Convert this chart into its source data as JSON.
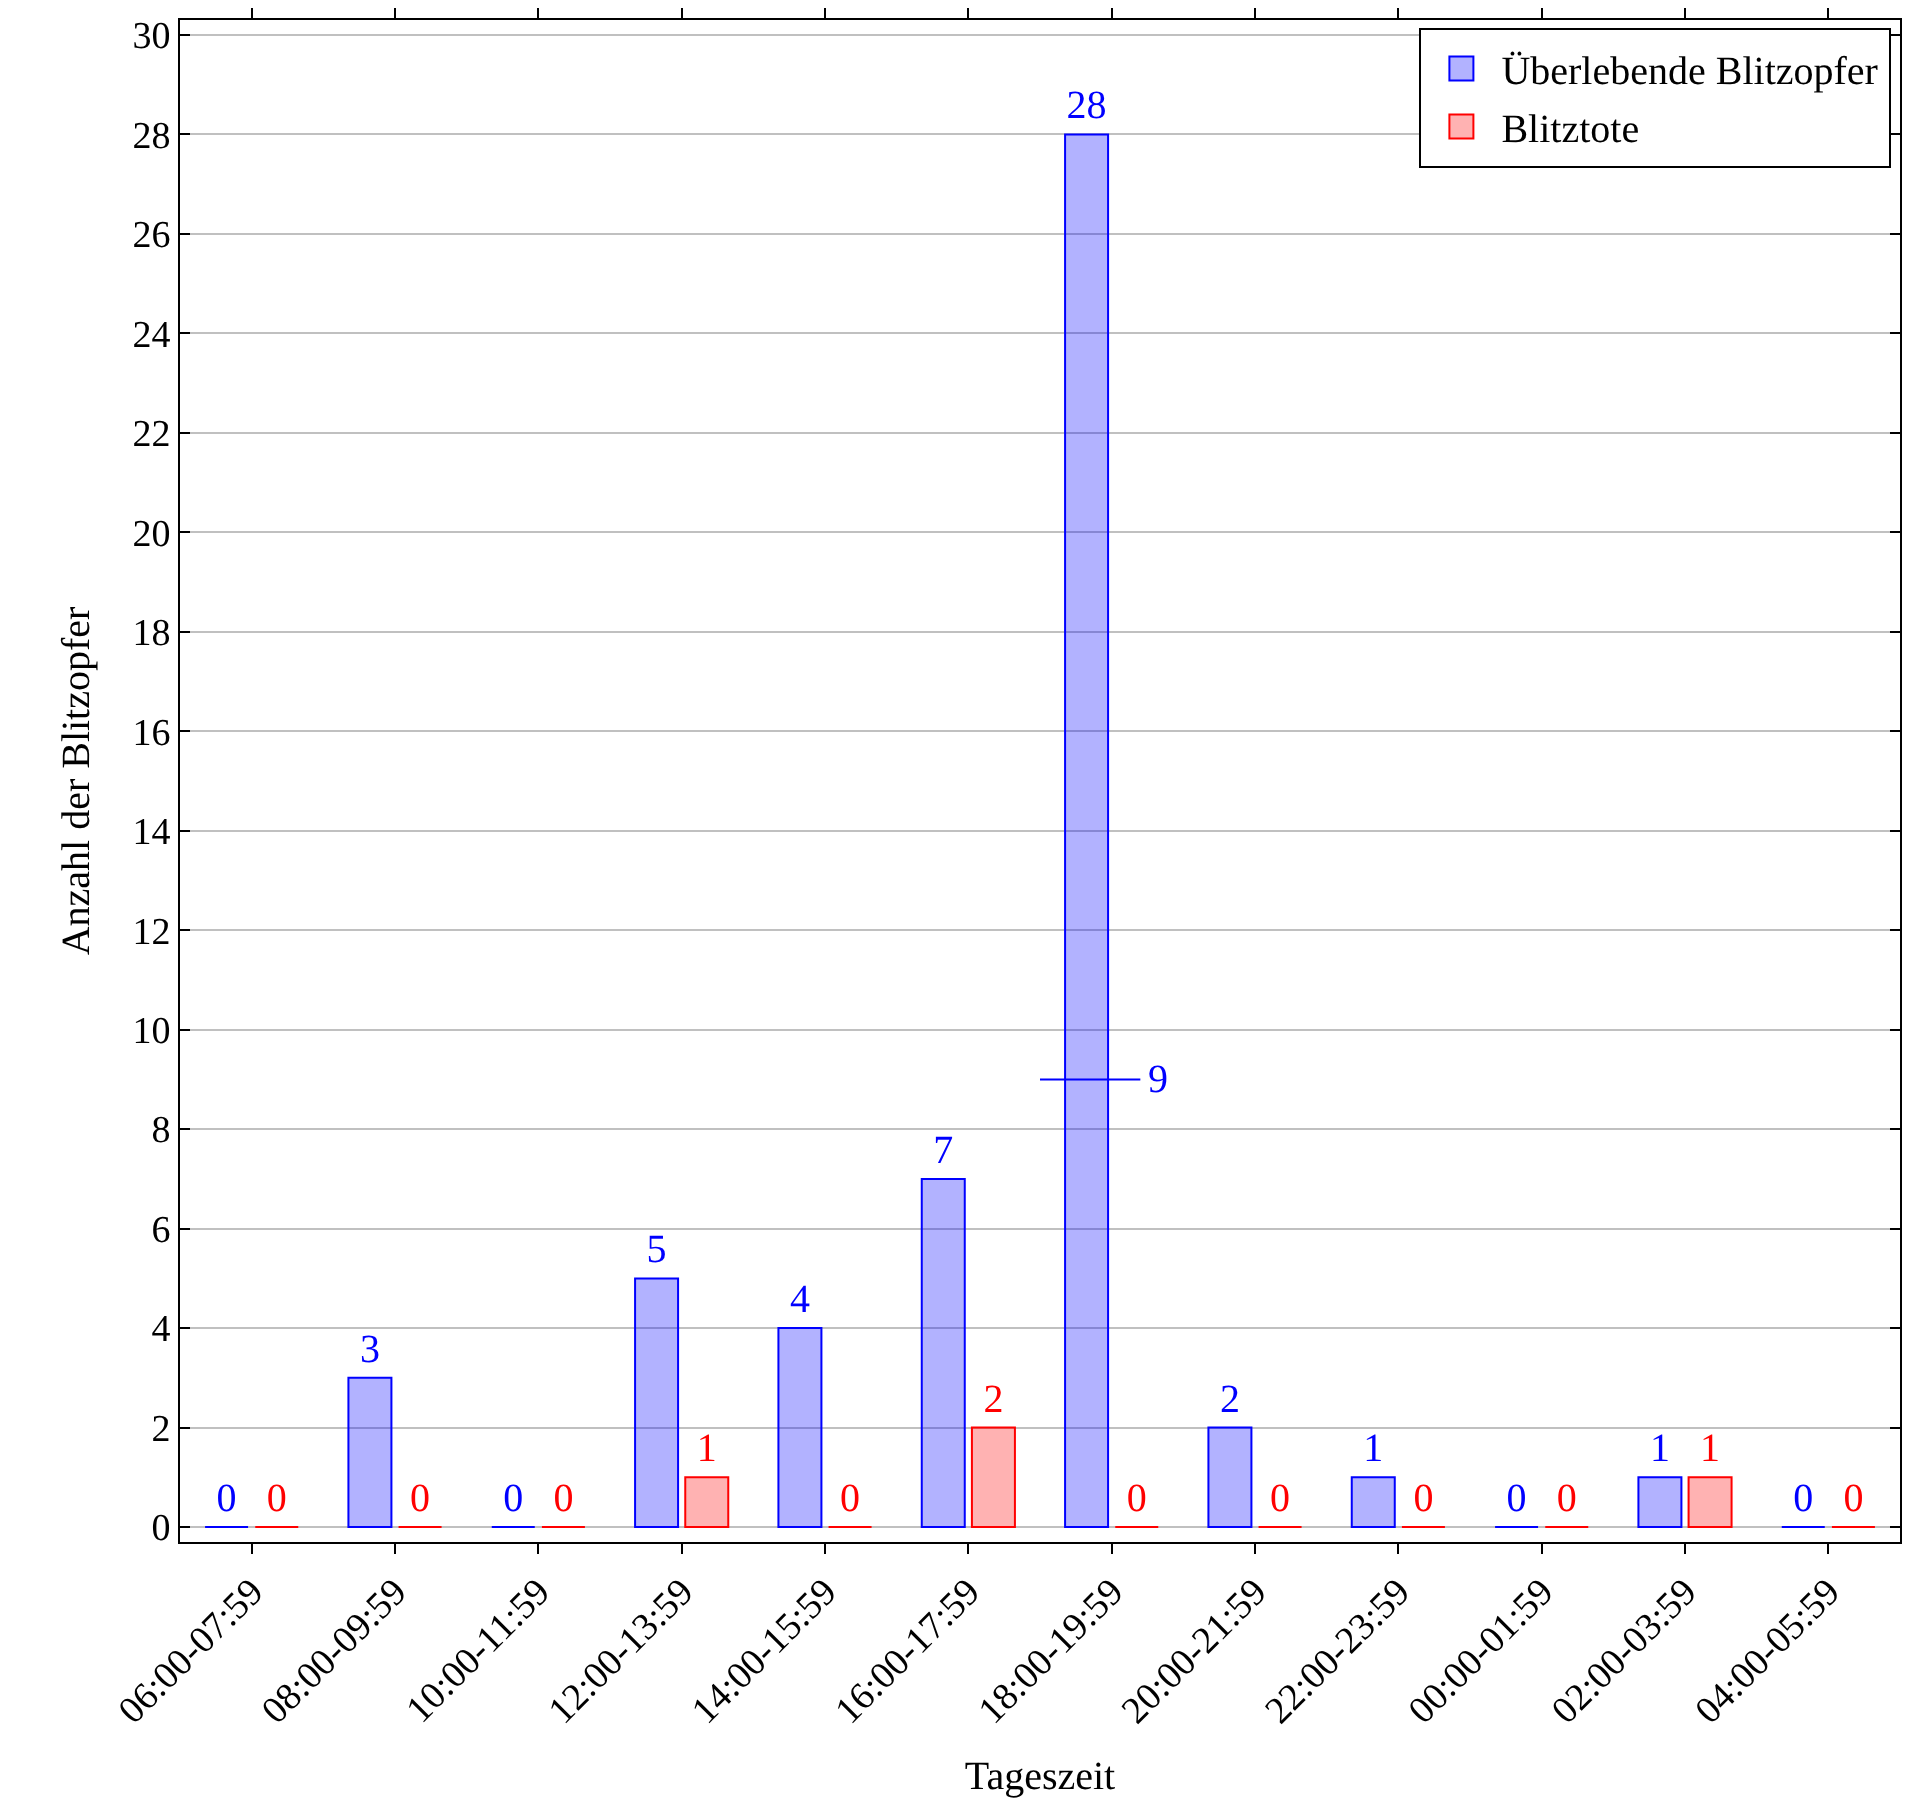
{
  "chart_data": {
    "type": "bar",
    "xlabel": "Tageszeit",
    "ylabel": "Anzahl der Blitzopfer",
    "categories": [
      "06:00-07:59",
      "08:00-09:59",
      "10:00-11:59",
      "12:00-13:59",
      "14:00-15:59",
      "16:00-17:59",
      "18:00-19:59",
      "20:00-21:59",
      "22:00-23:59",
      "00:00-01:59",
      "02:00-03:59",
      "04:00-05:59"
    ],
    "series": [
      {
        "name": "Überlebende Blitzopfer",
        "color": "#0000ff",
        "values": [
          0,
          3,
          0,
          5,
          4,
          7,
          28,
          2,
          1,
          0,
          1,
          0
        ]
      },
      {
        "name": "Blitztote",
        "color": "#ff0000",
        "values": [
          0,
          0,
          0,
          1,
          0,
          2,
          0,
          0,
          0,
          0,
          1,
          0
        ]
      }
    ],
    "ylim": [
      -0.3,
      30.3
    ],
    "yticks": [
      0,
      2,
      4,
      6,
      8,
      10,
      12,
      14,
      16,
      18,
      20,
      22,
      24,
      26,
      28,
      30
    ],
    "grid": "y",
    "legend": "top right",
    "data_labels": true,
    "annotations": [
      {
        "text": "9",
        "x": "18:00-19:59",
        "y": 9
      }
    ]
  }
}
